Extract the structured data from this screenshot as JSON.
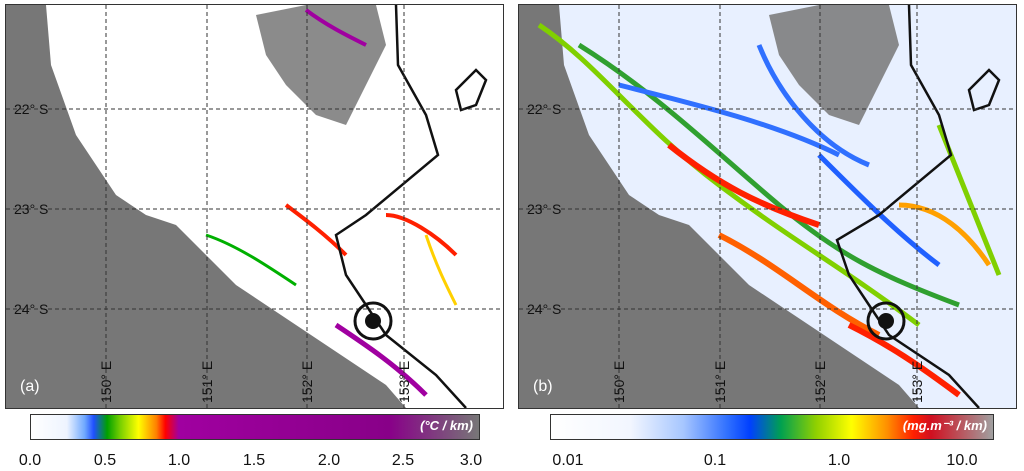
{
  "panels": {
    "a": {
      "label": "(a)",
      "unit": "(°C / km)",
      "ticks": [
        "0.0",
        "0.5",
        "1.0",
        "1.5",
        "2.0",
        "2.5",
        "3.0"
      ]
    },
    "b": {
      "label": "(b)",
      "unit": "(mg.m⁻³ / km)",
      "ticks": [
        "0.01",
        "0.1",
        "1.0",
        "10.0"
      ]
    }
  },
  "latitudes": [
    "22° S",
    "23° S",
    "24° S"
  ],
  "longitudes": [
    "150° E",
    "151° E",
    "152° E",
    "153° E"
  ],
  "colors": {
    "land": "#777777",
    "water": "#ffffff",
    "line": "#111111"
  }
}
